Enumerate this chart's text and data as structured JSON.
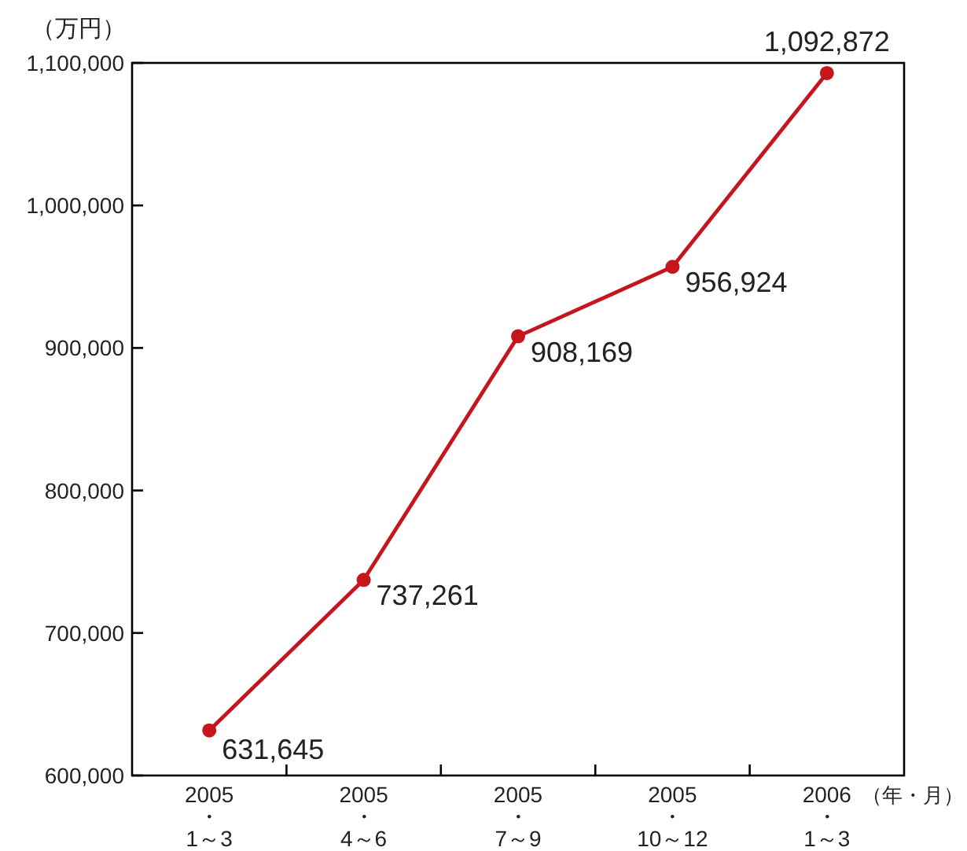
{
  "chart_data": {
    "type": "line",
    "ylabel": "（万円）",
    "xlabel": "（年・月）",
    "categories": [
      "2005\n・\n1～3",
      "2005\n・\n4～6",
      "2005\n・\n7～9",
      "2005\n・\n10～12",
      "2006\n・\n1～3"
    ],
    "series": [
      {
        "color": "#c4161c",
        "values": [
          631645,
          737261,
          908169,
          956924,
          1092872
        ],
        "value_labels": [
          "631,645",
          "737,261",
          "908,169",
          "956,924",
          "1,092,872"
        ]
      }
    ],
    "ylim": [
      600000,
      1100000
    ],
    "yticks": [
      {
        "value": 600000,
        "label": "600,000"
      },
      {
        "value": 700000,
        "label": "700,000"
      },
      {
        "value": 800000,
        "label": "800,000"
      },
      {
        "value": 900000,
        "label": "900,000"
      },
      {
        "value": 1000000,
        "label": "1,000,000"
      },
      {
        "value": 1100000,
        "label": "1,100,000"
      }
    ],
    "marker": "circle",
    "line_style": "solid"
  }
}
